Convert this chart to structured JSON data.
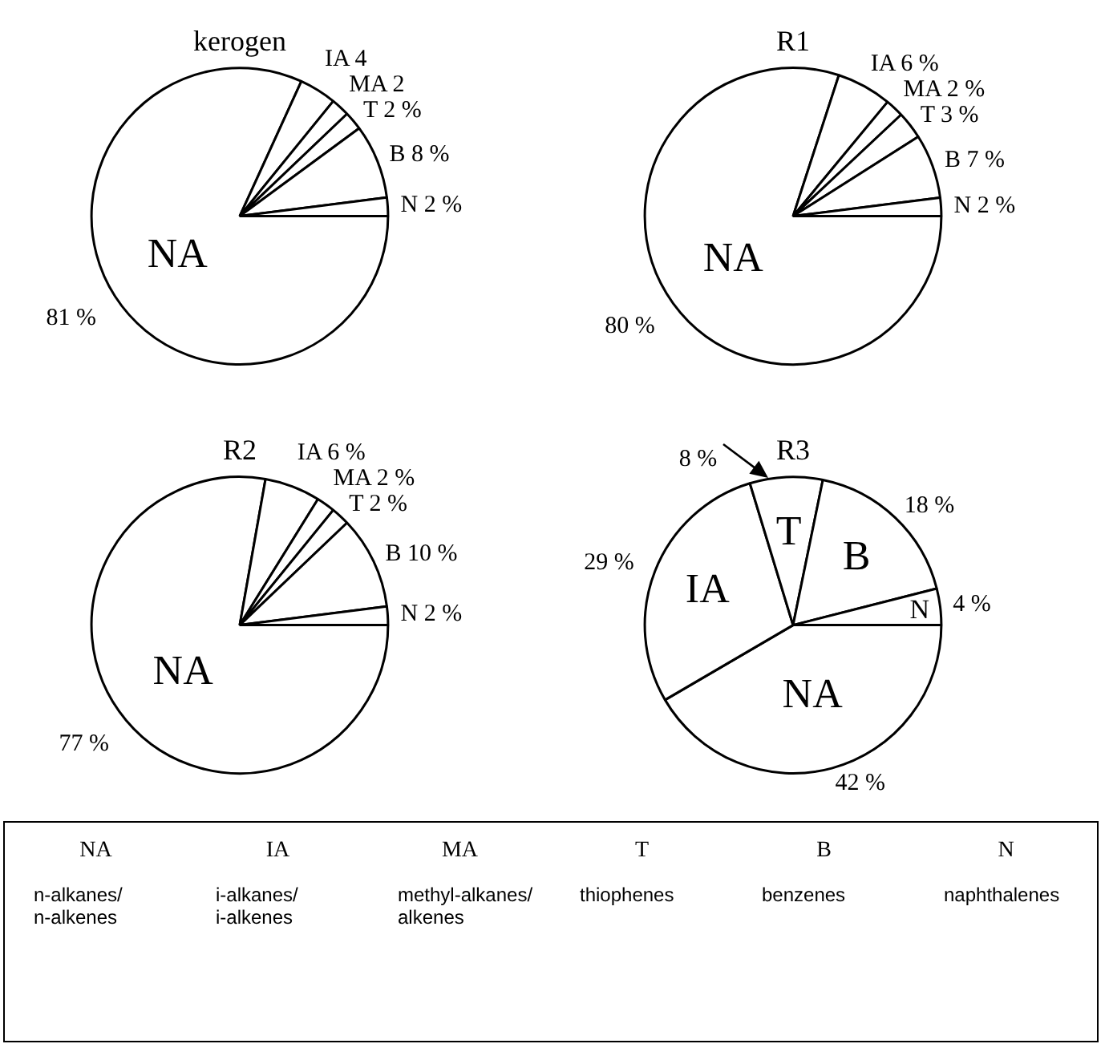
{
  "chart_data": [
    {
      "type": "pie",
      "title": "kerogen",
      "categories": [
        "NA",
        "IA",
        "MA",
        "T",
        "B",
        "N"
      ],
      "values": [
        81,
        4,
        2,
        2,
        8,
        2
      ],
      "value_labels": [
        "81 %",
        "4",
        "2",
        "2 %",
        "8 %",
        "2 %"
      ],
      "colors": [
        "#ffffff",
        "#ffffff",
        "#ffffff",
        "#ffffff",
        "#ffffff",
        "#ffffff"
      ],
      "legend": false
    },
    {
      "type": "pie",
      "title": "R1",
      "categories": [
        "NA",
        "IA",
        "MA",
        "T",
        "B",
        "N"
      ],
      "values": [
        80,
        6,
        2,
        3,
        7,
        2
      ],
      "value_labels": [
        "80 %",
        "6 %",
        "2 %",
        "3 %",
        "7 %",
        "2 %"
      ],
      "colors": [
        "#ffffff",
        "#ffffff",
        "#ffffff",
        "#ffffff",
        "#ffffff",
        "#ffffff"
      ],
      "legend": false
    },
    {
      "type": "pie",
      "title": "R2",
      "categories": [
        "NA",
        "IA",
        "MA",
        "T",
        "B",
        "N"
      ],
      "values": [
        77,
        6,
        2,
        2,
        10,
        2
      ],
      "value_labels": [
        "77 %",
        "6 %",
        "2 %",
        "2 %",
        "10 %",
        "2 %"
      ],
      "colors": [
        "#ffffff",
        "#ffffff",
        "#ffffff",
        "#ffffff",
        "#ffffff",
        "#ffffff"
      ],
      "legend": false
    },
    {
      "type": "pie",
      "title": "R3",
      "categories": [
        "NA",
        "IA",
        "T",
        "B",
        "N"
      ],
      "values": [
        42,
        29,
        8,
        18,
        4
      ],
      "value_labels": [
        "42 %",
        "29 %",
        "8 %",
        "18 %",
        "4 %"
      ],
      "colors": [
        "#ffffff",
        "#ffffff",
        "#ffffff",
        "#ffffff",
        "#ffffff"
      ]
    },
    {
      "type": "other",
      "categories": [
        "NA",
        "IA",
        "MA",
        "T",
        "B",
        "N"
      ],
      "annotations": [
        "n-alkanes/ n-alkenes",
        "i-alkanes/ i-alkenes",
        "methyl-alkanes/ alkenes",
        "thiophenes",
        "benzenes",
        "naphthalenes"
      ]
    }
  ]
}
